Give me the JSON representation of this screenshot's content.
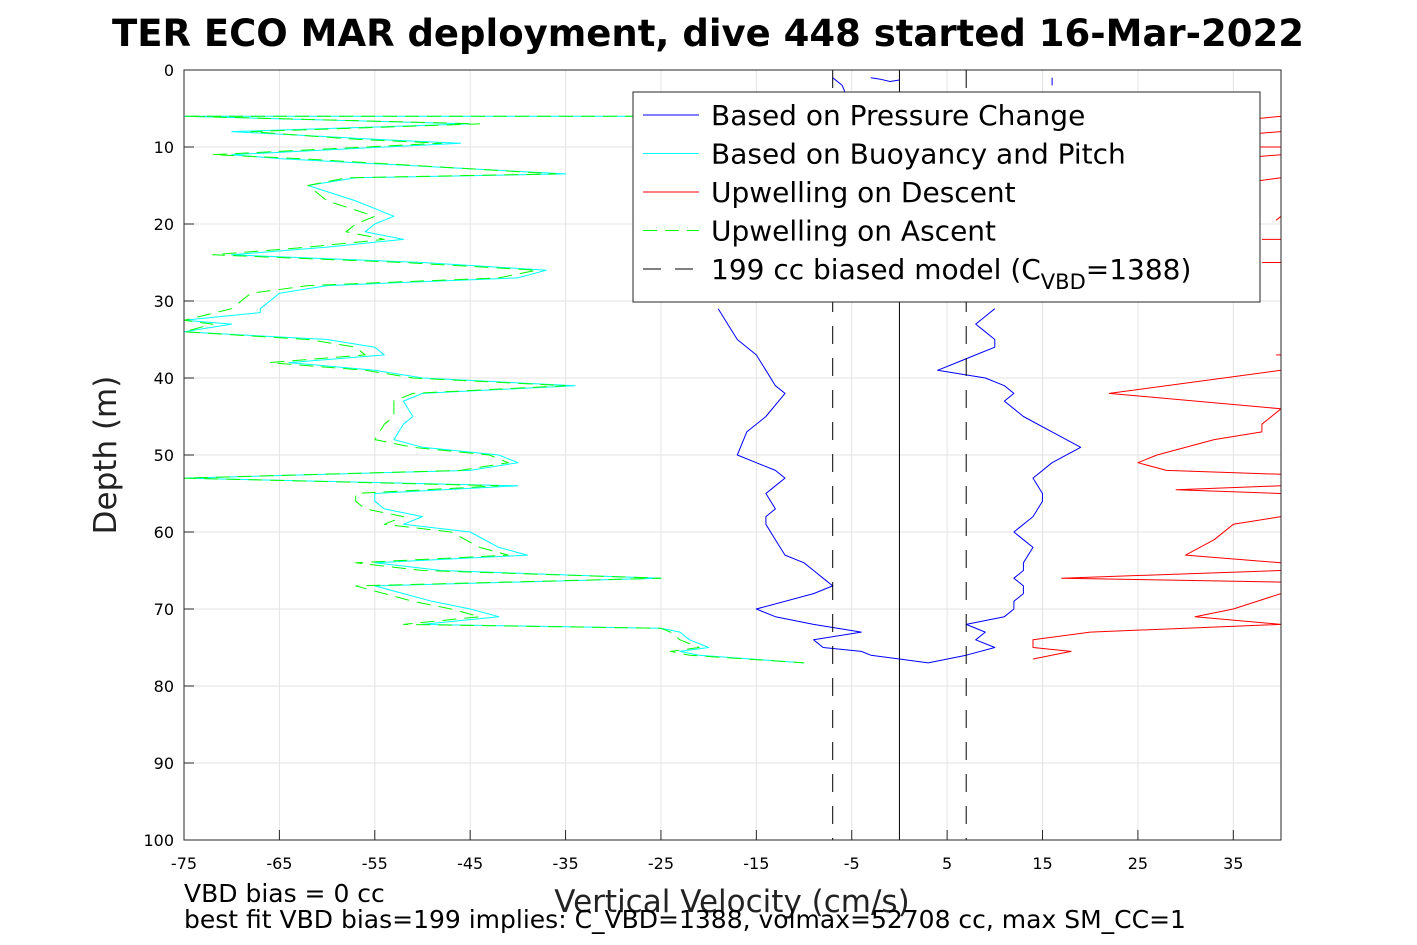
{
  "chart_data": {
    "type": "line",
    "title": "TER ECO MAR deployment, dive 448 started 16-Mar-2022",
    "xlabel": "Vertical Velocity (cm/s)",
    "ylabel": "Depth (m)",
    "xlim": [
      -75,
      40
    ],
    "ylim": [
      0,
      100
    ],
    "y_reversed": true,
    "xticks": [
      -75,
      -65,
      -55,
      -45,
      -35,
      -25,
      -15,
      -5,
      5,
      15,
      25,
      35
    ],
    "yticks": [
      0,
      10,
      20,
      30,
      40,
      50,
      60,
      70,
      80,
      90,
      100
    ],
    "grid": true,
    "legend_position": "top-right",
    "series": [
      {
        "name": "Based on Pressure Change",
        "color": "#0000ff",
        "dash": "solid",
        "segments": [
          [
            [
              -3,
              1
            ],
            [
              -2,
              1.2
            ],
            [
              -1,
              1.5
            ],
            [
              0,
              1.3
            ]
          ],
          [
            [
              -7,
              1
            ],
            [
              -6,
              2
            ],
            [
              -5,
              5
            ]
          ],
          [
            [
              -19,
              31
            ],
            [
              -18,
              33
            ],
            [
              -17,
              35
            ],
            [
              -15,
              37
            ],
            [
              -14,
              39
            ],
            [
              -13,
              41
            ],
            [
              -12,
              42
            ],
            [
              -14,
              45
            ],
            [
              -16,
              47
            ],
            [
              -17,
              50
            ],
            [
              -15,
              51
            ],
            [
              -13,
              52
            ],
            [
              -12,
              53
            ],
            [
              -13,
              54
            ],
            [
              -14,
              55
            ],
            [
              -13,
              57
            ],
            [
              -14,
              58
            ],
            [
              -14,
              59
            ],
            [
              -13,
              61
            ],
            [
              -12,
              63
            ],
            [
              -10,
              64
            ],
            [
              -9,
              65
            ],
            [
              -8,
              66
            ],
            [
              -7,
              67
            ],
            [
              -9,
              68
            ],
            [
              -15,
              70
            ],
            [
              -13,
              71
            ],
            [
              -9,
              72
            ],
            [
              -4,
              73
            ],
            [
              -9,
              74
            ],
            [
              -8,
              75
            ],
            [
              -4,
              75.5
            ],
            [
              -3,
              76
            ],
            [
              0,
              76.5
            ],
            [
              3,
              77
            ],
            [
              7,
              76
            ],
            [
              10,
              75
            ],
            [
              8,
              74
            ],
            [
              9,
              73
            ],
            [
              7,
              72
            ],
            [
              11,
              71
            ],
            [
              12,
              70
            ],
            [
              12,
              69
            ],
            [
              13,
              68
            ],
            [
              13,
              67
            ],
            [
              12,
              66
            ],
            [
              13,
              65
            ],
            [
              13,
              64
            ],
            [
              14,
              62
            ],
            [
              13,
              61
            ],
            [
              12,
              60
            ],
            [
              14,
              58
            ],
            [
              15,
              56
            ],
            [
              15,
              55
            ],
            [
              14,
              53
            ],
            [
              16,
              51
            ],
            [
              19,
              49
            ],
            [
              16,
              47
            ],
            [
              13,
              45
            ],
            [
              11,
              43
            ],
            [
              12,
              42
            ],
            [
              11,
              41
            ],
            [
              9,
              40
            ],
            [
              4,
              39
            ],
            [
              6,
              38
            ],
            [
              8,
              37
            ],
            [
              10,
              36
            ],
            [
              10,
              35
            ],
            [
              9,
              34
            ],
            [
              8,
              33
            ],
            [
              9,
              32
            ],
            [
              10,
              31
            ]
          ],
          [
            [
              16,
              1
            ],
            [
              16,
              2
            ]
          ]
        ]
      },
      {
        "name": "Based on Buoyancy and Pitch",
        "color": "#00ffff",
        "dash": "solid",
        "segments": [
          [
            [
              -25,
              6
            ],
            [
              -75,
              6
            ],
            [
              -45,
              7
            ],
            [
              -70,
              8
            ],
            [
              -55,
              9
            ],
            [
              -46,
              9.5
            ],
            [
              -70,
              11
            ],
            [
              -65,
              11.5
            ],
            [
              -35,
              13.5
            ],
            [
              -57,
              14
            ],
            [
              -62,
              15
            ],
            [
              -57,
              17
            ],
            [
              -53,
              19
            ],
            [
              -55,
              20
            ],
            [
              -56,
              21
            ],
            [
              -52,
              22
            ],
            [
              -60,
              23
            ],
            [
              -70,
              24
            ],
            [
              -50,
              25
            ],
            [
              -37,
              26
            ],
            [
              -40,
              27
            ],
            [
              -60,
              28
            ],
            [
              -65,
              29
            ],
            [
              -66,
              30
            ],
            [
              -67,
              31
            ],
            [
              -67,
              31.5
            ],
            [
              -75,
              32.5
            ],
            [
              -70,
              33
            ],
            [
              -75,
              34
            ],
            [
              -60,
              35
            ],
            [
              -55,
              36
            ],
            [
              -54,
              37
            ],
            [
              -64,
              38
            ],
            [
              -55,
              39
            ],
            [
              -50,
              40
            ],
            [
              -34,
              41
            ],
            [
              -50,
              42
            ],
            [
              -52,
              43
            ],
            [
              -51,
              45
            ],
            [
              -52,
              46
            ],
            [
              -53,
              48
            ],
            [
              -50,
              49
            ],
            [
              -42,
              50
            ],
            [
              -40,
              51
            ],
            [
              -45,
              52
            ],
            [
              -75,
              53
            ],
            [
              -40,
              54
            ],
            [
              -55,
              55
            ],
            [
              -55,
              56
            ],
            [
              -54,
              57
            ],
            [
              -50,
              58
            ],
            [
              -52,
              59
            ],
            [
              -45,
              60
            ],
            [
              -42,
              62
            ],
            [
              -39,
              63
            ],
            [
              -55,
              64
            ],
            [
              -48,
              65
            ],
            [
              -25,
              66
            ],
            [
              -55,
              67
            ],
            [
              -52,
              68
            ],
            [
              -49,
              69
            ],
            [
              -45,
              70
            ],
            [
              -42,
              71
            ],
            [
              -50,
              72
            ],
            [
              -25,
              72.5
            ],
            [
              -23,
              73
            ],
            [
              -22,
              74
            ],
            [
              -20,
              75
            ],
            [
              -23,
              75.5
            ],
            [
              -21,
              76
            ],
            [
              -10,
              77
            ]
          ]
        ]
      },
      {
        "name": "Upwelling on Descent",
        "color": "#ff0000",
        "dash": "solid",
        "segments": [
          [
            [
              40,
              6
            ],
            [
              36,
              6.5
            ]
          ],
          [
            [
              40,
              8
            ],
            [
              35,
              8.5
            ]
          ],
          [
            [
              40,
              10
            ],
            [
              36,
              10
            ]
          ],
          [
            [
              40,
              11
            ],
            [
              35,
              11.5
            ]
          ],
          [
            [
              40,
              14
            ],
            [
              37,
              14.5
            ]
          ],
          [
            [
              40,
              19
            ],
            [
              39.5,
              19.5
            ]
          ],
          [
            [
              40,
              22
            ],
            [
              38,
              22
            ]
          ],
          [
            [
              40,
              25
            ],
            [
              38,
              25
            ]
          ],
          [
            [
              40,
              37
            ],
            [
              39.5,
              37
            ]
          ],
          [
            [
              40,
              39
            ],
            [
              22,
              42
            ],
            [
              40,
              44
            ],
            [
              39,
              45
            ],
            [
              38,
              46
            ],
            [
              38,
              47
            ],
            [
              33,
              48
            ],
            [
              27,
              50
            ],
            [
              25,
              51
            ],
            [
              28,
              52
            ],
            [
              40,
              52.5
            ]
          ],
          [
            [
              40,
              54
            ],
            [
              29,
              54.5
            ],
            [
              40,
              55
            ]
          ],
          [
            [
              40,
              58
            ],
            [
              35,
              59
            ],
            [
              33,
              61
            ],
            [
              30,
              63
            ],
            [
              40,
              64
            ]
          ],
          [
            [
              40,
              65
            ],
            [
              17,
              66
            ],
            [
              40,
              66.5
            ]
          ],
          [
            [
              40,
              68
            ],
            [
              35,
              70
            ],
            [
              31,
              71
            ],
            [
              40,
              72
            ],
            [
              20,
              73
            ],
            [
              14,
              74
            ],
            [
              14,
              75
            ],
            [
              18,
              75.5
            ],
            [
              14,
              76.5
            ]
          ]
        ]
      },
      {
        "name": "Upwelling on Ascent",
        "color": "#00ff00",
        "dash": "dashed",
        "segments": [
          [
            [
              -25,
              6
            ],
            [
              -75,
              6
            ],
            [
              -44,
              7
            ],
            [
              -68,
              8
            ],
            [
              -57,
              9
            ],
            [
              -48,
              9.5
            ],
            [
              -72,
              11
            ],
            [
              -63,
              11.5
            ],
            [
              -36,
              13.5
            ],
            [
              -58,
              14
            ],
            [
              -62,
              15
            ],
            [
              -60,
              17
            ],
            [
              -55,
              19
            ],
            [
              -57,
              20
            ],
            [
              -58,
              21
            ],
            [
              -54,
              22
            ],
            [
              -62,
              23
            ],
            [
              -72,
              24
            ],
            [
              -52,
              25
            ],
            [
              -38,
              26
            ],
            [
              -42,
              27
            ],
            [
              -62,
              28
            ],
            [
              -68,
              29
            ],
            [
              -69,
              30
            ],
            [
              -70,
              31
            ],
            [
              -75,
              32.5
            ],
            [
              -72,
              33
            ],
            [
              -75,
              34
            ],
            [
              -62,
              35
            ],
            [
              -57,
              36
            ],
            [
              -56,
              37
            ],
            [
              -66,
              38
            ],
            [
              -56,
              39
            ],
            [
              -51,
              40
            ],
            [
              -35,
              41
            ],
            [
              -51,
              42
            ],
            [
              -53,
              43
            ],
            [
              -53,
              45
            ],
            [
              -54,
              46
            ],
            [
              -55,
              48
            ],
            [
              -51,
              49
            ],
            [
              -43,
              50
            ],
            [
              -41,
              51
            ],
            [
              -46,
              52
            ],
            [
              -75,
              53
            ],
            [
              -42,
              54
            ],
            [
              -57,
              55
            ],
            [
              -57,
              56
            ],
            [
              -56,
              57
            ],
            [
              -52,
              58
            ],
            [
              -54,
              59
            ],
            [
              -47,
              60
            ],
            [
              -44,
              62
            ],
            [
              -41,
              63
            ],
            [
              -57,
              64
            ],
            [
              -50,
              65
            ],
            [
              -25,
              66
            ],
            [
              -57,
              67
            ],
            [
              -54,
              68
            ],
            [
              -51,
              69
            ],
            [
              -47,
              70
            ],
            [
              -44,
              71
            ],
            [
              -52,
              72
            ],
            [
              -25,
              72.5
            ],
            [
              -24,
              73
            ],
            [
              -23,
              74
            ],
            [
              -21,
              75
            ],
            [
              -24,
              75.5
            ],
            [
              -22,
              76
            ],
            [
              -10,
              77
            ]
          ]
        ]
      },
      {
        "name": "199 cc biased model",
        "name_sub": "VBD",
        "name_tail": "=1388)",
        "name_prefix": "199 cc biased model (C",
        "color": "#000000",
        "dash": "dashdot",
        "segments": [
          [
            [
              -7,
              0
            ],
            [
              -7,
              100
            ]
          ],
          [
            [
              7,
              0
            ],
            [
              7,
              100
            ]
          ]
        ]
      }
    ],
    "zero_line": {
      "x": 0,
      "color": "#000000"
    },
    "footer": [
      "VBD bias = 0 cc",
      "best fit VBD bias=199 implies: C_VBD=1388, volmax=52708 cc, max SM_CC=1"
    ]
  }
}
